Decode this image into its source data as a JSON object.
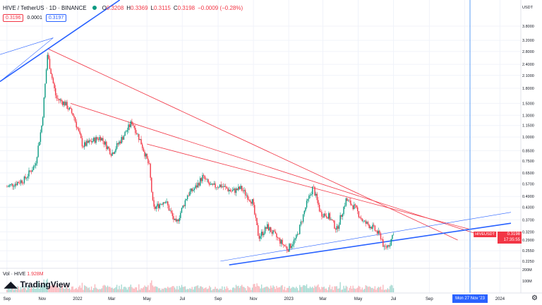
{
  "header": {
    "symbol": "HIVE / TetherUS · 1D · BINANCE",
    "open_label": "O",
    "open": "0.3208",
    "high_label": "H",
    "high": "0.3369",
    "low_label": "L",
    "low": "0.3115",
    "close_label": "C",
    "close": "0.3198",
    "change": "−0.0009 (−0.28%)"
  },
  "price_boxes": {
    "bid": "0.3196",
    "spread": "0.0001",
    "ask": "0.3197"
  },
  "axis": {
    "currency": "USDT"
  },
  "volume": {
    "label": "Vol · HIVE",
    "value": "1.928M"
  },
  "brand": {
    "name": "TradingView"
  },
  "last_price": {
    "symbol": "HIVEUSDT",
    "price": "0.3198",
    "countdown": "17:35:55"
  },
  "crosshair_date": "Mon 27 Nov '23",
  "colors": {
    "up": "#089981",
    "down": "#f23645",
    "trend_red": "#f23645",
    "trend_blue": "#2962ff"
  },
  "chart_data": {
    "type": "line",
    "y_scale": "log",
    "ylim": [
      0.21,
      5.2
    ],
    "y_ticks": [
      "3.8000",
      "3.2000",
      "2.8000",
      "2.4000",
      "2.1000",
      "1.8000",
      "1.5000",
      "1.3000",
      "1.1500",
      "1.0000",
      "0.8500",
      "0.7500",
      "0.6500",
      "0.5700",
      "0.4900",
      "0.4300",
      "0.3700",
      "0.3200",
      "0.2900",
      "0.2550",
      "0.2250"
    ],
    "y_tick_values": [
      3.8,
      3.2,
      2.8,
      2.4,
      2.1,
      1.8,
      1.5,
      1.3,
      1.15,
      1.0,
      0.85,
      0.75,
      0.65,
      0.57,
      0.49,
      0.43,
      0.37,
      0.32,
      0.29,
      0.255,
      0.225
    ],
    "x_ticks": [
      "Sep",
      "Nov",
      "2022",
      "Mar",
      "May",
      "Jul",
      "Sep",
      "Nov",
      "2023",
      "Mar",
      "May",
      "Jul",
      "Sep",
      "Nov",
      "2024"
    ],
    "vol_ticks": [
      "200M",
      "100M"
    ],
    "series": [
      {
        "x": [
          "2021-09-01",
          "2021-10-01",
          "2021-10-20",
          "2021-11-01",
          "2021-11-10",
          "2021-11-25",
          "2021-12-10",
          "2021-12-25",
          "2022-01-10",
          "2022-01-25",
          "2022-02-10",
          "2022-03-01",
          "2022-03-20",
          "2022-04-05",
          "2022-04-20",
          "2022-05-05",
          "2022-05-12",
          "2022-06-01",
          "2022-06-20",
          "2022-07-10",
          "2022-07-25",
          "2022-08-05",
          "2022-08-20",
          "2022-09-05",
          "2022-09-25",
          "2022-10-10",
          "2022-10-30",
          "2022-11-10",
          "2022-11-25",
          "2022-12-15",
          "2022-12-30",
          "2023-01-15",
          "2023-01-31",
          "2023-02-12",
          "2023-02-25",
          "2023-03-10",
          "2023-03-25",
          "2023-04-10",
          "2023-04-25",
          "2023-05-10",
          "2023-05-25",
          "2023-06-10",
          "2023-06-15",
          "2023-06-25",
          "2023-07-01"
        ],
        "values": [
          0.55,
          0.6,
          0.72,
          1.2,
          2.7,
          1.6,
          1.5,
          1.3,
          0.9,
          0.95,
          1.0,
          0.82,
          1.0,
          1.2,
          0.95,
          0.7,
          0.42,
          0.47,
          0.35,
          0.5,
          0.55,
          0.62,
          0.55,
          0.56,
          0.52,
          0.54,
          0.46,
          0.3,
          0.34,
          0.29,
          0.26,
          0.3,
          0.44,
          0.55,
          0.4,
          0.39,
          0.33,
          0.47,
          0.43,
          0.36,
          0.34,
          0.3,
          0.26,
          0.28,
          0.32
        ]
      }
    ]
  }
}
